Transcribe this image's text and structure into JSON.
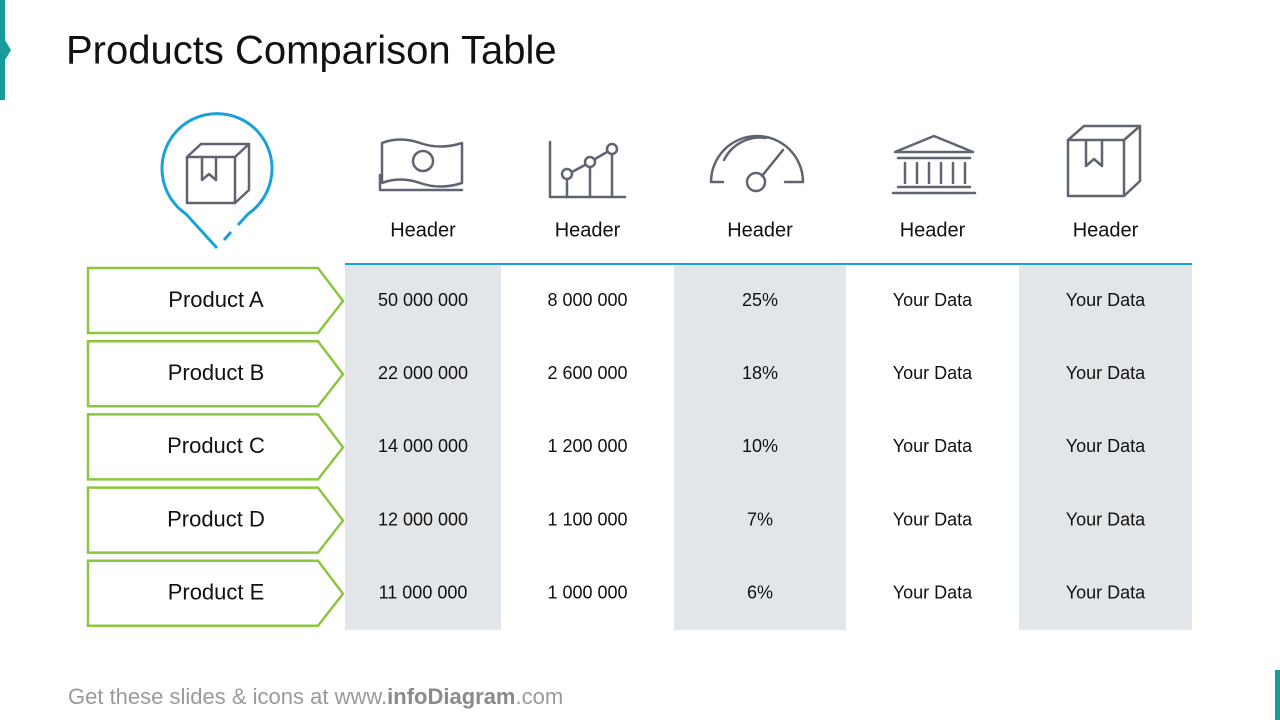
{
  "title": "Products Comparison Table",
  "table": {
    "headers": [
      "Header",
      "Header",
      "Header",
      "Header",
      "Header"
    ],
    "rows": [
      {
        "label": "Product A",
        "cells": [
          "50 000 000",
          "8 000 000",
          "25%",
          "Your Data",
          "Your Data"
        ]
      },
      {
        "label": "Product B",
        "cells": [
          "22 000 000",
          "2 600 000",
          "18%",
          "Your Data",
          "Your Data"
        ]
      },
      {
        "label": "Product C",
        "cells": [
          "14 000 000",
          "1 200 000",
          "10%",
          "Your Data",
          "Your Data"
        ]
      },
      {
        "label": "Product D",
        "cells": [
          "12 000 000",
          "1 100 000",
          "7%",
          "Your Data",
          "Your Data"
        ]
      },
      {
        "label": "Product E",
        "cells": [
          "11 000 000",
          "1 000 000",
          "6%",
          "Your Data",
          "Your Data"
        ]
      }
    ]
  },
  "footer": {
    "prefix": "Get these slides & icons at www.",
    "brand": "infoDiagram",
    "suffix": ".com"
  }
}
